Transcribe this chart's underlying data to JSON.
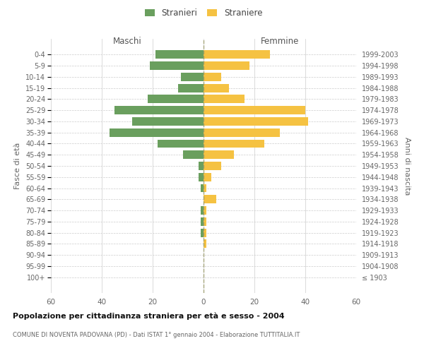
{
  "age_groups": [
    "0-4",
    "5-9",
    "10-14",
    "15-19",
    "20-24",
    "25-29",
    "30-34",
    "35-39",
    "40-44",
    "45-49",
    "50-54",
    "55-59",
    "60-64",
    "65-69",
    "70-74",
    "75-79",
    "80-84",
    "85-89",
    "90-94",
    "95-99",
    "100+"
  ],
  "birth_years": [
    "1999-2003",
    "1994-1998",
    "1989-1993",
    "1984-1988",
    "1979-1983",
    "1974-1978",
    "1969-1973",
    "1964-1968",
    "1959-1963",
    "1954-1958",
    "1949-1953",
    "1944-1948",
    "1939-1943",
    "1934-1938",
    "1929-1933",
    "1924-1928",
    "1919-1923",
    "1914-1918",
    "1909-1913",
    "1904-1908",
    "≤ 1903"
  ],
  "males": [
    19,
    21,
    9,
    10,
    22,
    35,
    28,
    37,
    18,
    8,
    2,
    2,
    1,
    0,
    1,
    1,
    1,
    0,
    0,
    0,
    0
  ],
  "females": [
    26,
    18,
    7,
    10,
    16,
    40,
    41,
    30,
    24,
    12,
    7,
    3,
    1,
    5,
    1,
    1,
    1,
    1,
    0,
    0,
    0
  ],
  "male_color": "#6a9f5e",
  "female_color": "#f5c242",
  "background_color": "#ffffff",
  "grid_color": "#cccccc",
  "title": "Popolazione per cittadinanza straniera per età e sesso - 2004",
  "subtitle": "COMUNE DI NOVENTA PADOVANA (PD) - Dati ISTAT 1° gennaio 2004 - Elaborazione TUTTITALIA.IT",
  "xlabel_left": "Maschi",
  "xlabel_right": "Femmine",
  "ylabel_left": "Fasce di età",
  "ylabel_right": "Anni di nascita",
  "legend_males": "Stranieri",
  "legend_females": "Straniere",
  "xlim": 60,
  "bar_height": 0.75
}
